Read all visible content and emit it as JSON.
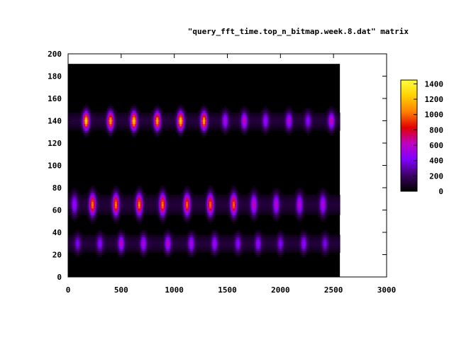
{
  "chart_data": {
    "type": "heatmap",
    "legend_title": "\"query_fft_time.top_n_bitmap.week.8.dat\" matrix",
    "xlim": [
      0,
      3000
    ],
    "ylim": [
      0,
      200
    ],
    "x_ticks": [
      "0",
      "500",
      "1000",
      "1500",
      "2000",
      "2500",
      "3000"
    ],
    "y_ticks": [
      "0",
      "20",
      "40",
      "60",
      "80",
      "100",
      "120",
      "140",
      "160",
      "180",
      "200"
    ],
    "x_tick_values": [
      0,
      500,
      1000,
      1500,
      2000,
      2500,
      3000
    ],
    "y_tick_values": [
      0,
      20,
      40,
      60,
      80,
      100,
      120,
      140,
      160,
      180,
      200
    ],
    "data_extent": {
      "x": [
        0,
        2560
      ],
      "y": [
        0,
        191
      ]
    },
    "colorbar": {
      "range": [
        0,
        1450
      ],
      "ticks": [
        "0",
        "200",
        "400",
        "600",
        "800",
        "1000",
        "1200",
        "1400"
      ],
      "tick_values": [
        0,
        200,
        400,
        600,
        800,
        1000,
        1200,
        1400
      ],
      "palette": [
        "#000000",
        "#3d0066",
        "#8000ff",
        "#c000c0",
        "#e00000",
        "#ff8000",
        "#ffd000",
        "#ffff40"
      ]
    },
    "bands": [
      {
        "y_center": 140,
        "y_half_width": 10,
        "peaks": [
          {
            "x": 170,
            "value": 1150
          },
          {
            "x": 400,
            "value": 1050
          },
          {
            "x": 620,
            "value": 1150
          },
          {
            "x": 840,
            "value": 1050
          },
          {
            "x": 1060,
            "value": 1150
          },
          {
            "x": 1280,
            "value": 1050
          },
          {
            "x": 1480,
            "value": 450
          },
          {
            "x": 1660,
            "value": 550
          },
          {
            "x": 1860,
            "value": 400
          },
          {
            "x": 2080,
            "value": 480
          },
          {
            "x": 2260,
            "value": 350
          },
          {
            "x": 2480,
            "value": 550
          }
        ]
      },
      {
        "y_center": 65,
        "y_half_width": 12,
        "peaks": [
          {
            "x": 60,
            "value": 400
          },
          {
            "x": 230,
            "value": 950
          },
          {
            "x": 450,
            "value": 950
          },
          {
            "x": 670,
            "value": 950
          },
          {
            "x": 890,
            "value": 950
          },
          {
            "x": 1120,
            "value": 900
          },
          {
            "x": 1340,
            "value": 900
          },
          {
            "x": 1560,
            "value": 900
          },
          {
            "x": 1750,
            "value": 550
          },
          {
            "x": 1960,
            "value": 500
          },
          {
            "x": 2180,
            "value": 500
          },
          {
            "x": 2400,
            "value": 480
          }
        ]
      },
      {
        "y_center": 30,
        "y_half_width": 10,
        "peaks": [
          {
            "x": 90,
            "value": 300
          },
          {
            "x": 300,
            "value": 350
          },
          {
            "x": 500,
            "value": 500
          },
          {
            "x": 710,
            "value": 450
          },
          {
            "x": 940,
            "value": 500
          },
          {
            "x": 1160,
            "value": 450
          },
          {
            "x": 1380,
            "value": 420
          },
          {
            "x": 1600,
            "value": 350
          },
          {
            "x": 1790,
            "value": 380
          },
          {
            "x": 2000,
            "value": 320
          },
          {
            "x": 2220,
            "value": 380
          },
          {
            "x": 2420,
            "value": 300
          }
        ]
      }
    ]
  }
}
